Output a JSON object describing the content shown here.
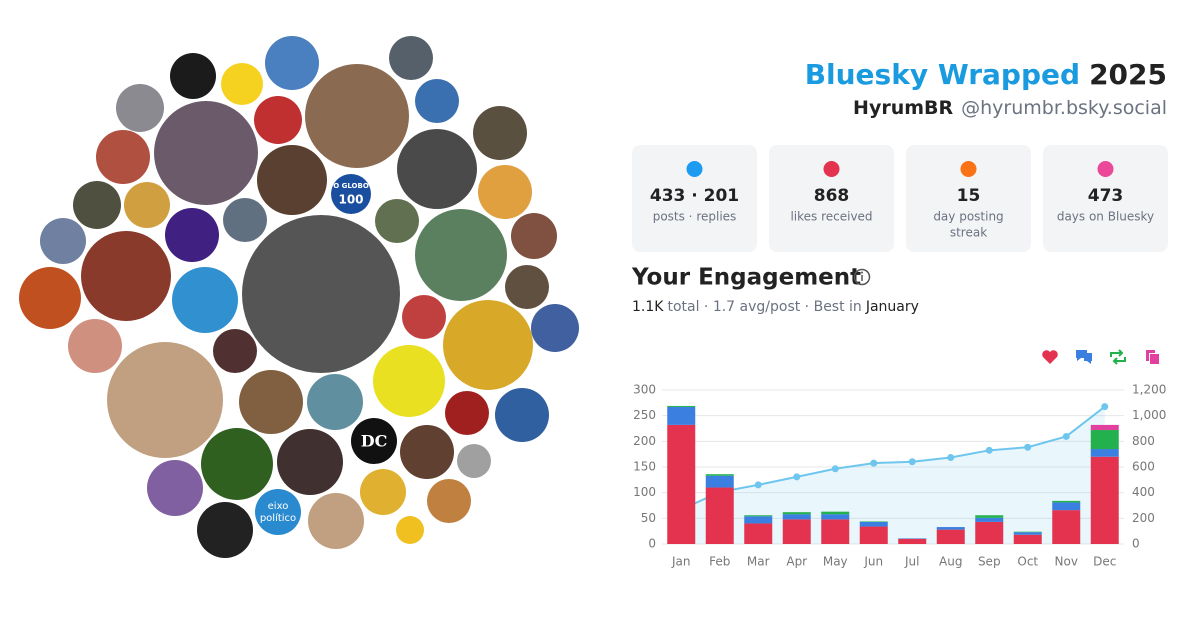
{
  "header": {
    "title": "Bluesky Wrapped",
    "year": "2025",
    "name": "HyrumBR",
    "handle": "@hyrumbr.bsky.social"
  },
  "avatars": {
    "globo": [
      "O GLOBO",
      "100"
    ],
    "dc": "DC",
    "eixo": [
      "eixo",
      "político"
    ]
  },
  "stats": [
    {
      "value": "433 · 201",
      "label": [
        "posts · replies"
      ]
    },
    {
      "value": "868",
      "label": [
        "likes received"
      ]
    },
    {
      "value": "15",
      "label": [
        "day posting",
        "streak"
      ]
    },
    {
      "value": "473",
      "label": [
        "days on Bluesky"
      ]
    }
  ],
  "engagement": {
    "title": "Your Engagement",
    "total": "1.1K",
    "summary": "total · 1.7 avg/post · Best in",
    "best_month": "January"
  },
  "chart_data": {
    "type": "bar",
    "stacked": true,
    "grid": true,
    "categories": [
      "Jan",
      "Feb",
      "Mar",
      "Apr",
      "May",
      "Jun",
      "Jul",
      "Aug",
      "Sep",
      "Oct",
      "Nov",
      "Dec"
    ],
    "series": [
      {
        "color": "#e3334f",
        "values": [
          232,
          110,
          40,
          48,
          48,
          34,
          10,
          28,
          43,
          18,
          66,
          170
        ]
      },
      {
        "color": "#3b7fe0",
        "values": [
          35,
          23,
          14,
          10,
          10,
          9,
          1,
          5,
          8,
          5,
          15,
          15
        ]
      },
      {
        "color": "#22b14c",
        "values": [
          2,
          3,
          2,
          4,
          5,
          1,
          0,
          0,
          5,
          1,
          3,
          37
        ]
      },
      {
        "color": "#e2409f",
        "values": [
          0,
          0,
          0,
          0,
          0,
          0,
          0,
          0,
          0,
          0,
          0,
          10
        ]
      },
      {
        "type": "line",
        "axis": "y2",
        "color": "#6ec6ee",
        "values": [
          269,
          405,
          461,
          523,
          586,
          630,
          641,
          674,
          730,
          754,
          838,
          1070
        ]
      }
    ],
    "ylim": [
      0,
      300
    ],
    "yticks": [
      0,
      50,
      100,
      150,
      200,
      250,
      300
    ],
    "y2lim": [
      0,
      1200
    ],
    "y2ticks": [
      0,
      200,
      400,
      600,
      800,
      {
        "value": 1000,
        "label": "1,000"
      },
      {
        "value": 1200,
        "label": "1,200"
      }
    ]
  }
}
